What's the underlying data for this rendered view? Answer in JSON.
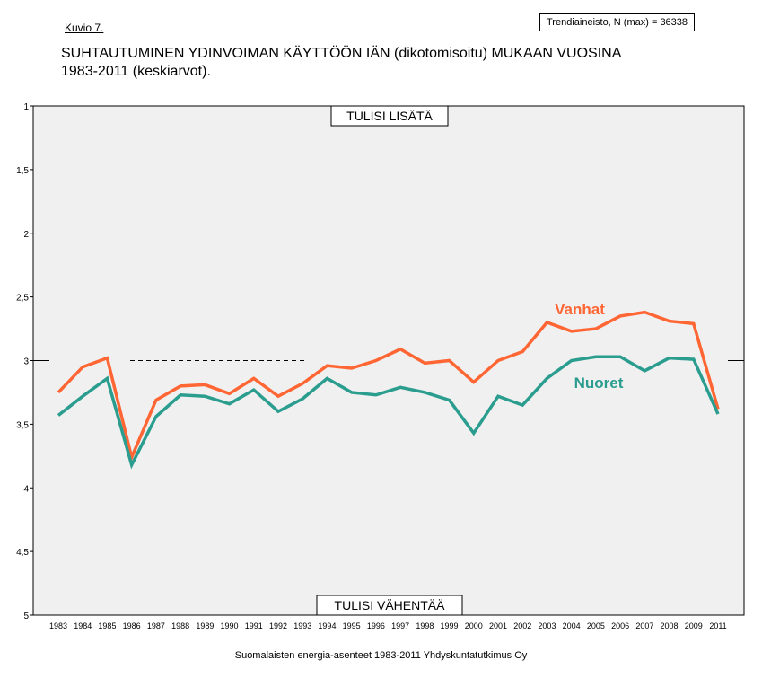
{
  "figure_label": "Kuvio 7.",
  "n_box": "Trendiaineisto, N (max) = 36338",
  "title_line1": "SUHTAUTUMINEN YDINVOIMAN KÄYTTÖÖN IÄN (dikotomisoitu) MUKAAN VUOSINA",
  "title_line2": "1983-2011 (keskiarvot).",
  "footer": "Suomalaisten energia-asenteet 1983-2011 Yhdyskuntatutkimus Oy",
  "chart_data": {
    "type": "line",
    "categories": [
      "1983",
      "1984",
      "1985",
      "1986",
      "1987",
      "1988",
      "1989",
      "1990",
      "1991",
      "1992",
      "1993",
      "1994",
      "1995",
      "1996",
      "1997",
      "1998",
      "1999",
      "2000",
      "2001",
      "2002",
      "2003",
      "2004",
      "2005",
      "2006",
      "2007",
      "2008",
      "2009",
      "2011"
    ],
    "y_ticks": [
      "1",
      "1,5",
      "2",
      "2,5",
      "3",
      "3,5",
      "4",
      "4,5",
      "5"
    ],
    "ylim": [
      1,
      5
    ],
    "y_inverted": true,
    "top_annotation": "TULISI LISÄTÄ",
    "bottom_annotation": "TULISI VÄHENTÄÄ",
    "reference_value": 3,
    "grid": false,
    "background": "#f0f0f0",
    "series": [
      {
        "name": "Vanhat",
        "color": "#ff6633",
        "values": [
          3.25,
          3.05,
          2.98,
          3.76,
          3.31,
          3.2,
          3.19,
          3.26,
          3.14,
          3.28,
          3.18,
          3.04,
          3.06,
          3.0,
          2.91,
          3.02,
          3.0,
          3.17,
          3.0,
          2.93,
          2.7,
          2.77,
          2.75,
          2.65,
          2.62,
          2.69,
          2.71,
          3.38
        ]
      },
      {
        "name": "Nuoret",
        "color": "#2a9d8f",
        "values": [
          3.43,
          3.28,
          3.14,
          3.82,
          3.44,
          3.27,
          3.28,
          3.34,
          3.23,
          3.4,
          3.3,
          3.14,
          3.25,
          3.27,
          3.21,
          3.25,
          3.31,
          3.57,
          3.28,
          3.35,
          3.14,
          3.0,
          2.97,
          2.97,
          3.08,
          2.98,
          2.99,
          3.42
        ]
      }
    ]
  }
}
